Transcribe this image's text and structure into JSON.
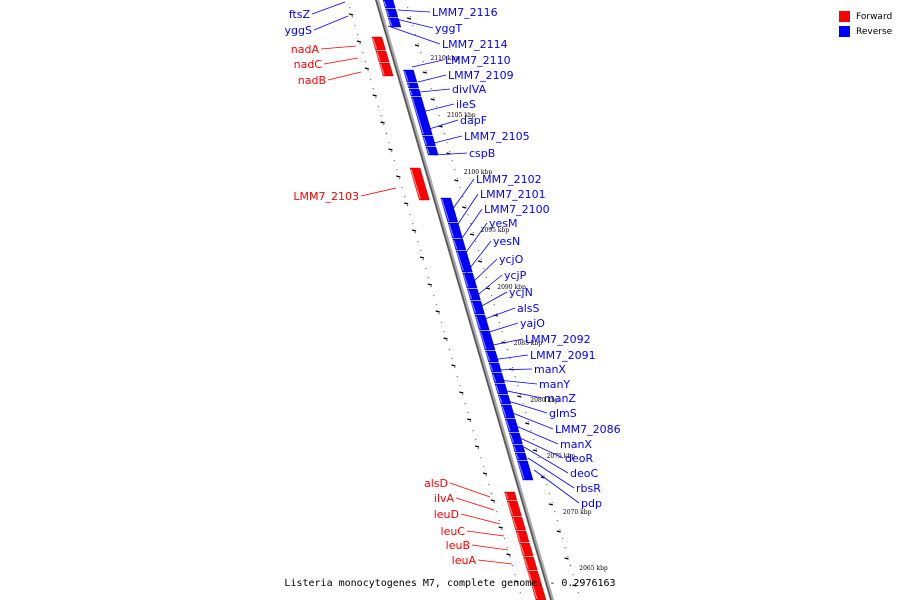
{
  "legend": {
    "forward_label": "Forward",
    "reverse_label": "Reverse",
    "forward_color": "#ff0000",
    "reverse_color": "#0000ff"
  },
  "caption": "Listeria monocytogenes M7, complete genome. - 0.2976163",
  "genome_ticks": [
    "2110 kbp",
    "2105 kbp",
    "2100 kbp",
    "2095 kbp",
    "2090 kbp",
    "2085 kbp",
    "2080 kbp",
    "2075 kbp",
    "2070 kbp",
    "2065 kbp"
  ],
  "forward_genes": [
    "nadA",
    "nadC",
    "nadB",
    "LMM7_2103",
    "alsD",
    "ilvA",
    "leuD",
    "leuC",
    "leuB",
    "leuA"
  ],
  "reverse_genes": [
    "ftsZ",
    "yggS",
    "LMM7_2116",
    "yggT",
    "LMM7_2114",
    "LMM7_2110",
    "LMM7_2109",
    "divIVA",
    "ileS",
    "dapF",
    "LMM7_2105",
    "cspB",
    "LMM7_2102",
    "LMM7_2101",
    "LMM7_2100",
    "yesM",
    "yesN",
    "ycjO",
    "ycjP",
    "ycjN",
    "alsS",
    "yajO",
    "LMM7_2092",
    "LMM7_2091",
    "manX",
    "manY",
    "manZ",
    "glmS",
    "LMM7_2086",
    "manX",
    "deoR",
    "deoC",
    "rbsR",
    "pdp"
  ]
}
